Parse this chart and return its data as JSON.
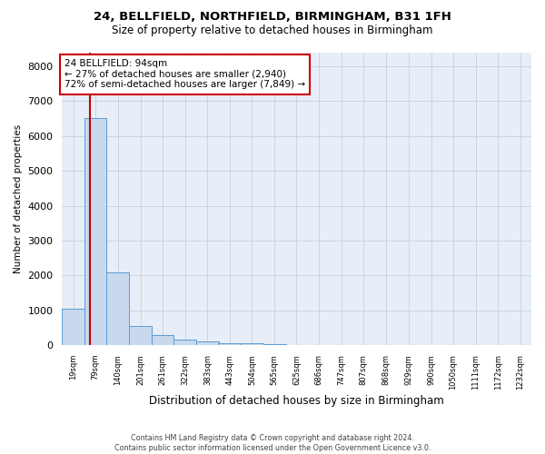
{
  "title_line1": "24, BELLFIELD, NORTHFIELD, BIRMINGHAM, B31 1FH",
  "title_line2": "Size of property relative to detached houses in Birmingham",
  "xlabel": "Distribution of detached houses by size in Birmingham",
  "ylabel": "Number of detached properties",
  "footer_line1": "Contains HM Land Registry data © Crown copyright and database right 2024.",
  "footer_line2": "Contains public sector information licensed under the Open Government Licence v3.0.",
  "annotation_line1": "24 BELLFIELD: 94sqm",
  "annotation_line2": "← 27% of detached houses are smaller (2,940)",
  "annotation_line3": "72% of semi-detached houses are larger (7,849) →",
  "property_size_sqm": 94,
  "bar_color": "#c9d9ed",
  "bar_edge_color": "#5b9bd5",
  "vline_color": "#cc0000",
  "annotation_box_edgecolor": "#cc0000",
  "background_color": "#ffffff",
  "grid_color": "#c8d4e8",
  "bin_left_edges": [
    19,
    79,
    140,
    201,
    261,
    322,
    383,
    443,
    504,
    565,
    625,
    686,
    747,
    807,
    868,
    929,
    990,
    1050,
    1111,
    1172
  ],
  "bin_labels": [
    "19sqm",
    "79sqm",
    "140sqm",
    "201sqm",
    "261sqm",
    "322sqm",
    "383sqm",
    "443sqm",
    "504sqm",
    "565sqm",
    "625sqm",
    "686sqm",
    "747sqm",
    "807sqm",
    "868sqm",
    "929sqm",
    "990sqm",
    "1050sqm",
    "1111sqm",
    "1172sqm",
    "1232sqm"
  ],
  "bar_heights": [
    1050,
    6500,
    2100,
    560,
    280,
    150,
    100,
    65,
    45,
    30,
    0,
    0,
    0,
    0,
    0,
    0,
    0,
    0,
    0,
    0
  ],
  "bin_width": 61,
  "ylim": [
    0,
    8400
  ],
  "yticks": [
    0,
    1000,
    2000,
    3000,
    4000,
    5000,
    6000,
    7000,
    8000
  ],
  "xlim_left": 19,
  "xlim_right": 1293
}
